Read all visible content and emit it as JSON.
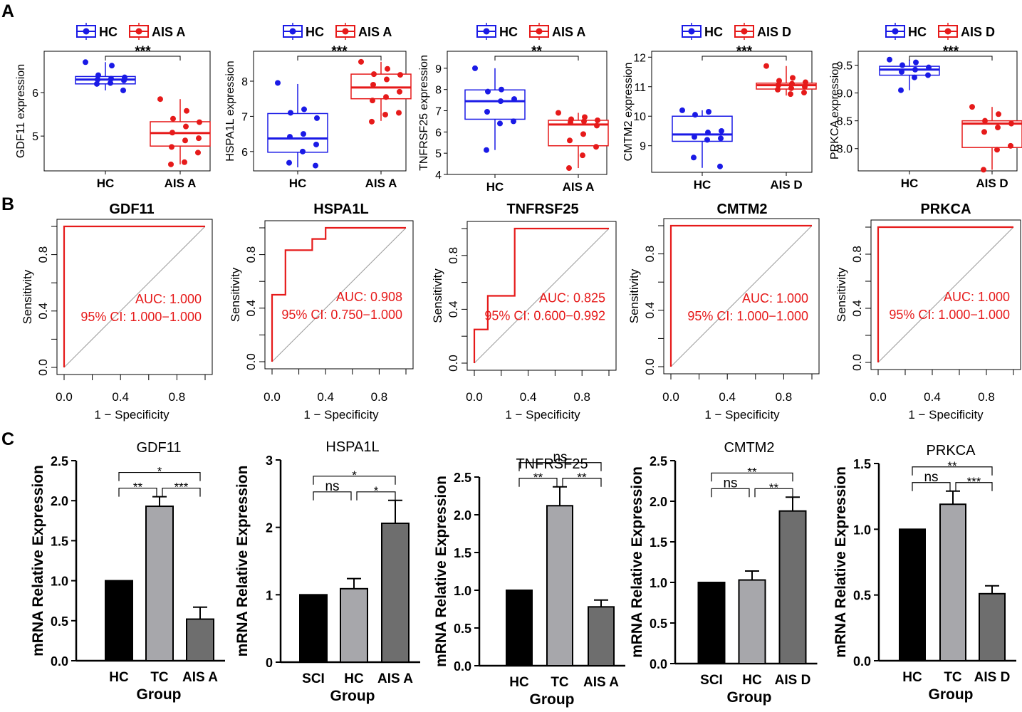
{
  "panel_labels": {
    "a": "A",
    "b": "B",
    "c": "C"
  },
  "colors": {
    "hc": "#1a1ae6",
    "ais": "#e61a1a",
    "roc": "#e61a1a",
    "diag": "#9a9a9a",
    "black": "#000000",
    "gray1": "#a7a7ab",
    "gray2": "#6e6e6e"
  },
  "chart_data": [
    {
      "panel": "A",
      "type": "boxplot",
      "ylabel": "GDF11 expression",
      "ylim": [
        4.2,
        6.95
      ],
      "yticks": [
        5,
        6
      ],
      "legend": [
        "HC",
        "AIS A"
      ],
      "categories": [
        "HC",
        "AIS A"
      ],
      "significance": "***",
      "boxes": [
        {
          "q1": 6.2,
          "med": 6.3,
          "q3": 6.37,
          "lo": 6.05,
          "hi": 6.7
        },
        {
          "q1": 4.77,
          "med": 5.07,
          "q3": 5.33,
          "lo": 4.35,
          "hi": 5.85
        }
      ],
      "points": [
        [
          6.7,
          6.62,
          6.4,
          6.35,
          6.32,
          6.3,
          6.28,
          6.22,
          6.2,
          6.05
        ],
        [
          5.85,
          5.58,
          5.4,
          5.32,
          5.22,
          5.08,
          4.95,
          4.9,
          4.75,
          4.62,
          4.4,
          4.35
        ]
      ]
    },
    {
      "panel": "A",
      "type": "boxplot",
      "ylabel": "HSPA1L expression",
      "ylim": [
        5.45,
        8.85
      ],
      "yticks": [
        6,
        7,
        8
      ],
      "legend": [
        "HC",
        "AIS A"
      ],
      "categories": [
        "HC",
        "AIS A"
      ],
      "significance": "***",
      "boxes": [
        {
          "q1": 5.98,
          "med": 6.37,
          "q3": 7.08,
          "lo": 5.55,
          "hi": 7.92
        },
        {
          "q1": 7.5,
          "med": 7.82,
          "q3": 8.2,
          "lo": 6.87,
          "hi": 8.55
        }
      ],
      "points": [
        [
          7.95,
          7.2,
          7.1,
          6.95,
          6.5,
          6.42,
          6.2,
          6.0,
          5.68,
          5.6
        ],
        [
          8.55,
          8.35,
          8.2,
          8.18,
          8.05,
          7.9,
          7.7,
          7.55,
          7.45,
          7.1,
          7.05,
          6.85
        ]
      ]
    },
    {
      "panel": "A",
      "type": "boxplot",
      "ylabel": "TNFRSF25 expression",
      "ylim": [
        4,
        9.8
      ],
      "yticks": [
        4,
        5,
        6,
        7,
        8,
        9
      ],
      "legend": [
        "HC",
        "AIS A"
      ],
      "categories": [
        "HC",
        "AIS A"
      ],
      "significance": "**",
      "boxes": [
        {
          "q1": 6.6,
          "med": 7.45,
          "q3": 7.98,
          "lo": 5.15,
          "hi": 9.0
        },
        {
          "q1": 5.35,
          "med": 6.35,
          "q3": 6.55,
          "lo": 4.3,
          "hi": 6.9
        }
      ],
      "points": [
        [
          9.0,
          8.0,
          7.9,
          7.55,
          7.45,
          6.95,
          6.5,
          6.4,
          5.15
        ],
        [
          6.9,
          6.7,
          6.6,
          6.55,
          6.5,
          6.45,
          6.3,
          5.9,
          5.6,
          5.3,
          4.9,
          4.3
        ]
      ]
    },
    {
      "panel": "A",
      "type": "boxplot",
      "ylabel": "CMTM2 expression",
      "ylim": [
        8.1,
        12.2
      ],
      "yticks": [
        9,
        10,
        11,
        12
      ],
      "legend": [
        "HC",
        "AIS D"
      ],
      "categories": [
        "HC",
        "AIS D"
      ],
      "significance": "***",
      "boxes": [
        {
          "q1": 9.15,
          "med": 9.38,
          "q3": 10.0,
          "lo": 8.25,
          "hi": 10.2
        },
        {
          "q1": 10.92,
          "med": 11.05,
          "q3": 11.12,
          "lo": 10.7,
          "hi": 11.7
        }
      ],
      "points": [
        [
          10.2,
          10.15,
          10.05,
          9.5,
          9.45,
          9.3,
          9.25,
          9.2,
          8.6,
          8.3
        ],
        [
          11.7,
          11.3,
          11.2,
          11.15,
          11.1,
          11.05,
          11.0,
          10.95,
          10.9,
          10.8,
          10.75
        ]
      ]
    },
    {
      "panel": "A",
      "type": "boxplot",
      "ylabel": "PRKCA expression",
      "ylim": [
        7.6,
        9.75
      ],
      "yticks": [
        8.0,
        8.5,
        9.0,
        9.5
      ],
      "legend": [
        "HC",
        "AIS D"
      ],
      "categories": [
        "HC",
        "AIS D"
      ],
      "significance": "***",
      "boxes": [
        {
          "q1": 9.32,
          "med": 9.42,
          "q3": 9.48,
          "lo": 9.05,
          "hi": 9.6
        },
        {
          "q1": 8.02,
          "med": 8.45,
          "q3": 8.5,
          "lo": 7.62,
          "hi": 8.75
        }
      ],
      "points": [
        [
          9.6,
          9.55,
          9.5,
          9.46,
          9.42,
          9.38,
          9.32,
          9.28,
          9.05
        ],
        [
          8.75,
          8.62,
          8.5,
          8.45,
          8.38,
          8.3,
          8.05,
          7.98,
          7.62
        ]
      ]
    },
    {
      "panel": "B",
      "type": "line",
      "title": "GDF11",
      "xlabel": "1 − Specificity",
      "ylabel": "Sensitivity",
      "auc": "AUC: 1.000",
      "ci": "95% CI: 1.000−1.000",
      "roc": [
        [
          0,
          0
        ],
        [
          0,
          1
        ],
        [
          1,
          1
        ]
      ]
    },
    {
      "panel": "B",
      "type": "line",
      "title": "HSPA1L",
      "xlabel": "1 − Specificity",
      "ylabel": "Sensitivity",
      "auc": "AUC: 0.908",
      "ci": "95% CI: 0.750−1.000",
      "roc": [
        [
          0,
          0
        ],
        [
          0,
          0.5
        ],
        [
          0.1,
          0.5
        ],
        [
          0.1,
          0.833
        ],
        [
          0.3,
          0.833
        ],
        [
          0.3,
          0.917
        ],
        [
          0.4,
          0.917
        ],
        [
          0.4,
          1
        ],
        [
          1,
          1
        ]
      ]
    },
    {
      "panel": "B",
      "type": "line",
      "title": "TNFRSF25",
      "xlabel": "1 − Specificity",
      "ylabel": "Sensitivity",
      "auc": "AUC: 0.825",
      "ci": "95% CI: 0.600−0.992",
      "roc": [
        [
          0,
          0
        ],
        [
          0,
          0.25
        ],
        [
          0.1,
          0.25
        ],
        [
          0.1,
          0.5
        ],
        [
          0.3,
          0.5
        ],
        [
          0.3,
          1
        ],
        [
          1,
          1
        ]
      ]
    },
    {
      "panel": "B",
      "type": "line",
      "title": "CMTM2",
      "xlabel": "1 − Specificity",
      "ylabel": "Sensitivity",
      "auc": "AUC: 1.000",
      "ci": "95% CI: 1.000−1.000",
      "roc": [
        [
          0,
          0
        ],
        [
          0,
          1
        ],
        [
          1,
          1
        ]
      ]
    },
    {
      "panel": "B",
      "type": "line",
      "title": "PRKCA",
      "xlabel": "1 − Specificity",
      "ylabel": "Sensitivity",
      "auc": "AUC: 1.000",
      "ci": "95% CI: 1.000−1.000",
      "roc": [
        [
          0,
          0
        ],
        [
          0,
          1
        ],
        [
          1,
          1
        ]
      ]
    },
    {
      "panel": "C",
      "type": "bar",
      "title": "GDF11",
      "xlabel": "Group",
      "ylabel": "mRNA Relative Expression",
      "categories": [
        "HC",
        "TC",
        "AIS A"
      ],
      "values": [
        1.0,
        1.93,
        0.52
      ],
      "errors": [
        0,
        0.12,
        0.15
      ],
      "ylim": [
        0,
        2.5
      ],
      "yticks": [
        "0.0",
        "0.5",
        "1.0",
        "1.5",
        "2.0",
        "2.5"
      ],
      "sig_short": [
        "**",
        "***"
      ],
      "sig_long": "*"
    },
    {
      "panel": "C",
      "type": "bar",
      "title": "HSPA1L",
      "xlabel": "Group",
      "ylabel": "mRNA Relative Expression",
      "categories": [
        "SCI",
        "HC",
        "AIS A"
      ],
      "values": [
        1.0,
        1.09,
        2.06
      ],
      "errors": [
        0,
        0.15,
        0.34
      ],
      "ylim": [
        0,
        3
      ],
      "yticks": [
        "0",
        "1",
        "2",
        "3"
      ],
      "sig_short": [
        "ns",
        "*"
      ],
      "sig_long": "*"
    },
    {
      "panel": "C",
      "type": "bar",
      "title": "TNFRSF25",
      "xlabel": "Group",
      "ylabel": "mRNA Relative Expression",
      "categories": [
        "HC",
        "TC",
        "AIS A"
      ],
      "values": [
        1.0,
        2.12,
        0.78
      ],
      "errors": [
        0,
        0.25,
        0.09
      ],
      "ylim": [
        0,
        2.5
      ],
      "yticks": [
        "0.0",
        "0.5",
        "1.0",
        "1.5",
        "2.0",
        "2.5"
      ],
      "sig_short": [
        "**",
        "**"
      ],
      "sig_long": "ns"
    },
    {
      "panel": "C",
      "type": "bar",
      "title": "CMTM2",
      "xlabel": "Group",
      "ylabel": "mRNA Relative Expression",
      "categories": [
        "SCI",
        "HC",
        "AIS D"
      ],
      "values": [
        1.0,
        1.03,
        1.88
      ],
      "errors": [
        0,
        0.11,
        0.17
      ],
      "ylim": [
        0,
        2.5
      ],
      "yticks": [
        "0.0",
        "0.5",
        "1.0",
        "1.5",
        "2.0",
        "2.5"
      ],
      "sig_short": [
        "ns",
        "**"
      ],
      "sig_long": "**"
    },
    {
      "panel": "C",
      "type": "bar",
      "title": "PRKCA",
      "xlabel": "Group",
      "ylabel": "mRNA Relative Expression",
      "categories": [
        "HC",
        "TC",
        "AIS D"
      ],
      "values": [
        1.0,
        1.19,
        0.51
      ],
      "errors": [
        0,
        0.1,
        0.06
      ],
      "ylim": [
        0,
        1.5
      ],
      "yticks": [
        "0.0",
        "0.5",
        "1.0",
        "1.5"
      ],
      "sig_short": [
        "ns",
        "***"
      ],
      "sig_long": "**"
    }
  ]
}
